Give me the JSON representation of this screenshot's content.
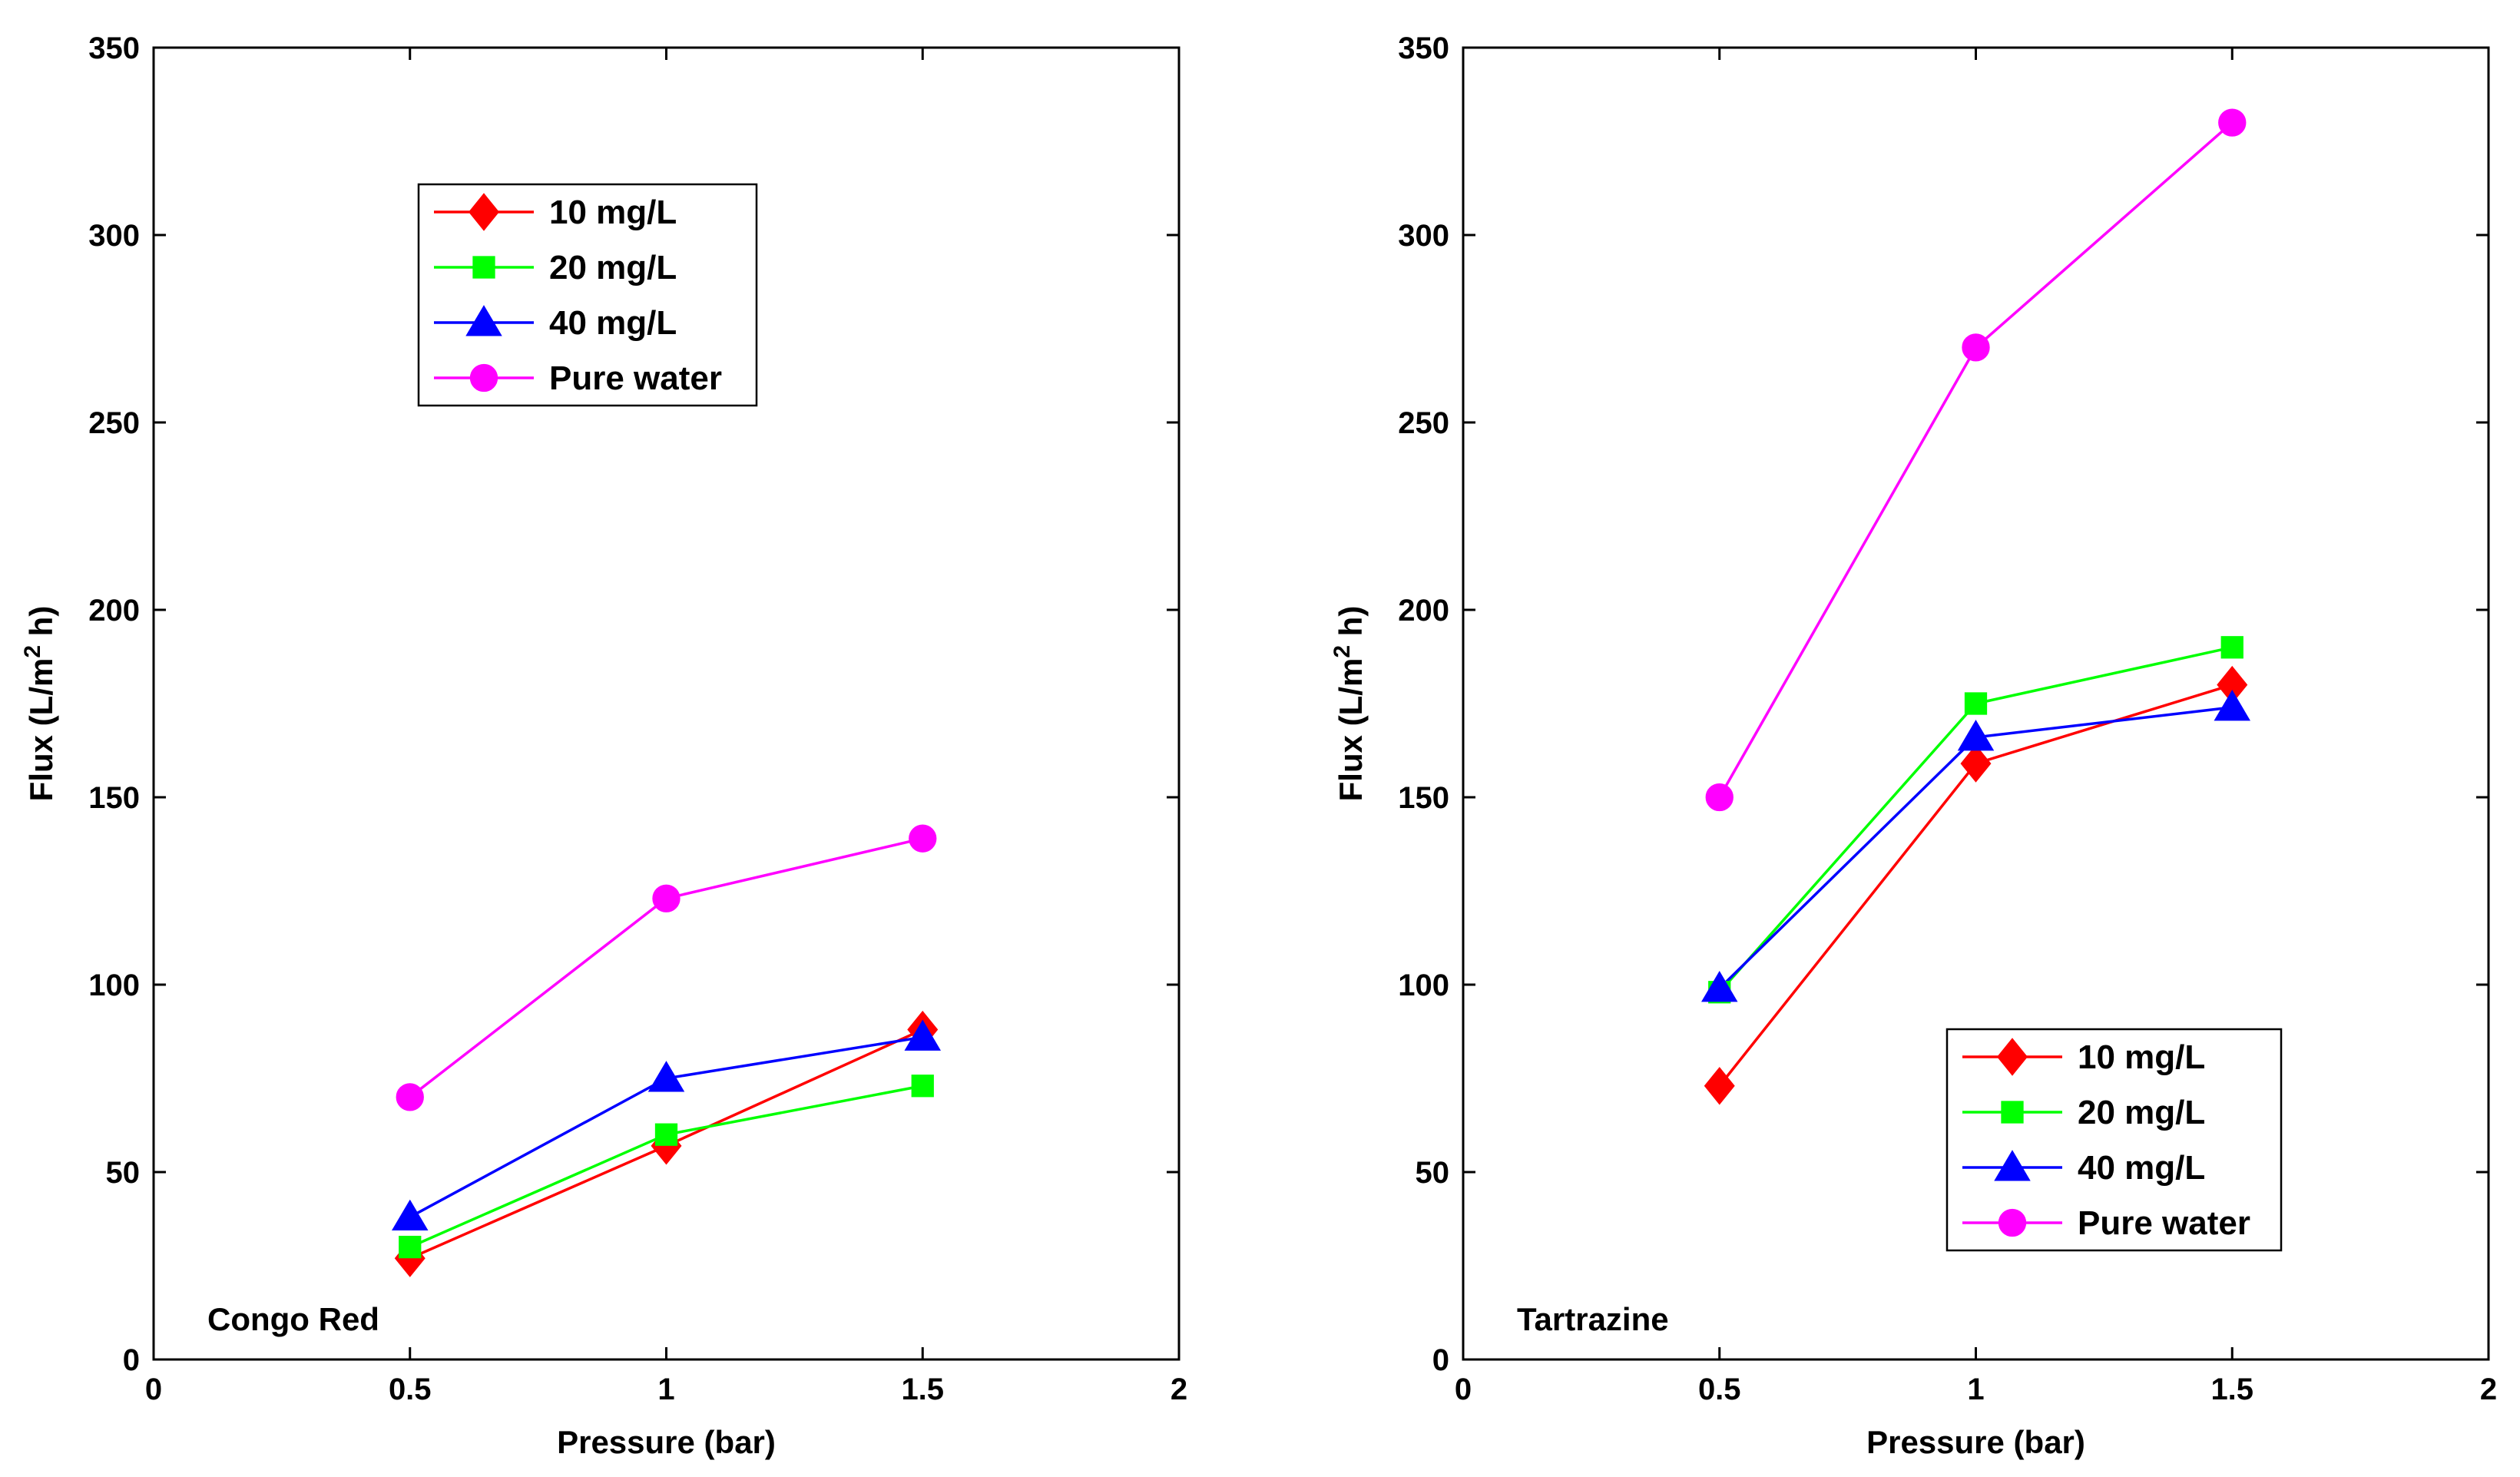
{
  "chart_data": [
    {
      "type": "line",
      "annotation": "Congo Red",
      "xlabel": "Pressure (bar)",
      "ylabel_parts": {
        "pre": "Flux (L/m",
        "sup": "2",
        "post": " h)"
      },
      "xlim": [
        0,
        2
      ],
      "ylim": [
        0,
        350
      ],
      "xticks": [
        "0",
        "0.5",
        "1",
        "1.5",
        "2"
      ],
      "yticks": [
        "0",
        "50",
        "100",
        "150",
        "200",
        "250",
        "300",
        "350"
      ],
      "grid": false,
      "legend_position": "top-left",
      "x": [
        0.5,
        1,
        1.5
      ],
      "series": [
        {
          "name": "10 mg/L",
          "values": [
            27,
            57,
            88
          ],
          "color": "#ff0000",
          "marker": "diamond"
        },
        {
          "name": "20 mg/L",
          "values": [
            30,
            60,
            73
          ],
          "color": "#00ff00",
          "marker": "square"
        },
        {
          "name": "40 mg/L",
          "values": [
            38,
            75,
            86
          ],
          "color": "#0000ff",
          "marker": "triangle"
        },
        {
          "name": "Pure water",
          "values": [
            70,
            123,
            139
          ],
          "color": "#ff00ff",
          "marker": "circle"
        }
      ]
    },
    {
      "type": "line",
      "annotation": "Tartrazine",
      "xlabel": "Pressure (bar)",
      "ylabel_parts": {
        "pre": "Flux (L/m",
        "sup": "2",
        "post": " h)"
      },
      "xlim": [
        0,
        2
      ],
      "ylim": [
        0,
        350
      ],
      "xticks": [
        "0",
        "0.5",
        "1",
        "1.5",
        "2"
      ],
      "yticks": [
        "0",
        "50",
        "100",
        "150",
        "200",
        "250",
        "300",
        "350"
      ],
      "grid": false,
      "legend_position": "bottom-right",
      "x": [
        0.5,
        1,
        1.5
      ],
      "series": [
        {
          "name": "10 mg/L",
          "values": [
            73,
            159,
            180
          ],
          "color": "#ff0000",
          "marker": "diamond"
        },
        {
          "name": "20 mg/L",
          "values": [
            98,
            175,
            190
          ],
          "color": "#00ff00",
          "marker": "square"
        },
        {
          "name": "40 mg/L",
          "values": [
            99,
            166,
            174
          ],
          "color": "#0000ff",
          "marker": "triangle"
        },
        {
          "name": "Pure water",
          "values": [
            150,
            270,
            330
          ],
          "color": "#ff00ff",
          "marker": "circle"
        }
      ]
    }
  ]
}
